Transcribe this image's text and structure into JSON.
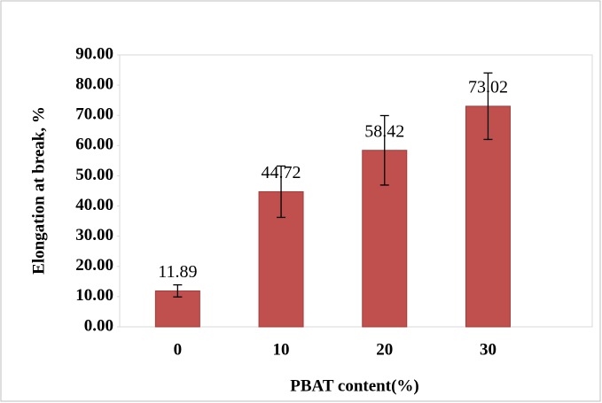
{
  "chart_data": {
    "type": "bar",
    "y_label": "Elongation at break, %",
    "x_label": "PBAT content(%)",
    "categories": [
      "0",
      "10",
      "20",
      "30"
    ],
    "values": [
      11.89,
      44.72,
      58.42,
      73.02
    ],
    "errors": [
      2,
      8.5,
      11.5,
      11
    ],
    "color": "#c0504d",
    "ylim": [
      0,
      90
    ],
    "yticks": [
      {
        "value": 0,
        "label": "0.00"
      },
      {
        "value": 10,
        "label": "10.00"
      },
      {
        "value": 20,
        "label": "20.00"
      },
      {
        "value": 30,
        "label": "30.00"
      },
      {
        "value": 40,
        "label": "40.00"
      },
      {
        "value": 50,
        "label": "50.00"
      },
      {
        "value": 60,
        "label": "60.00"
      },
      {
        "value": 70,
        "label": "70.00"
      },
      {
        "value": 80,
        "label": "80.00"
      },
      {
        "value": 90,
        "label": "90.00"
      }
    ]
  }
}
